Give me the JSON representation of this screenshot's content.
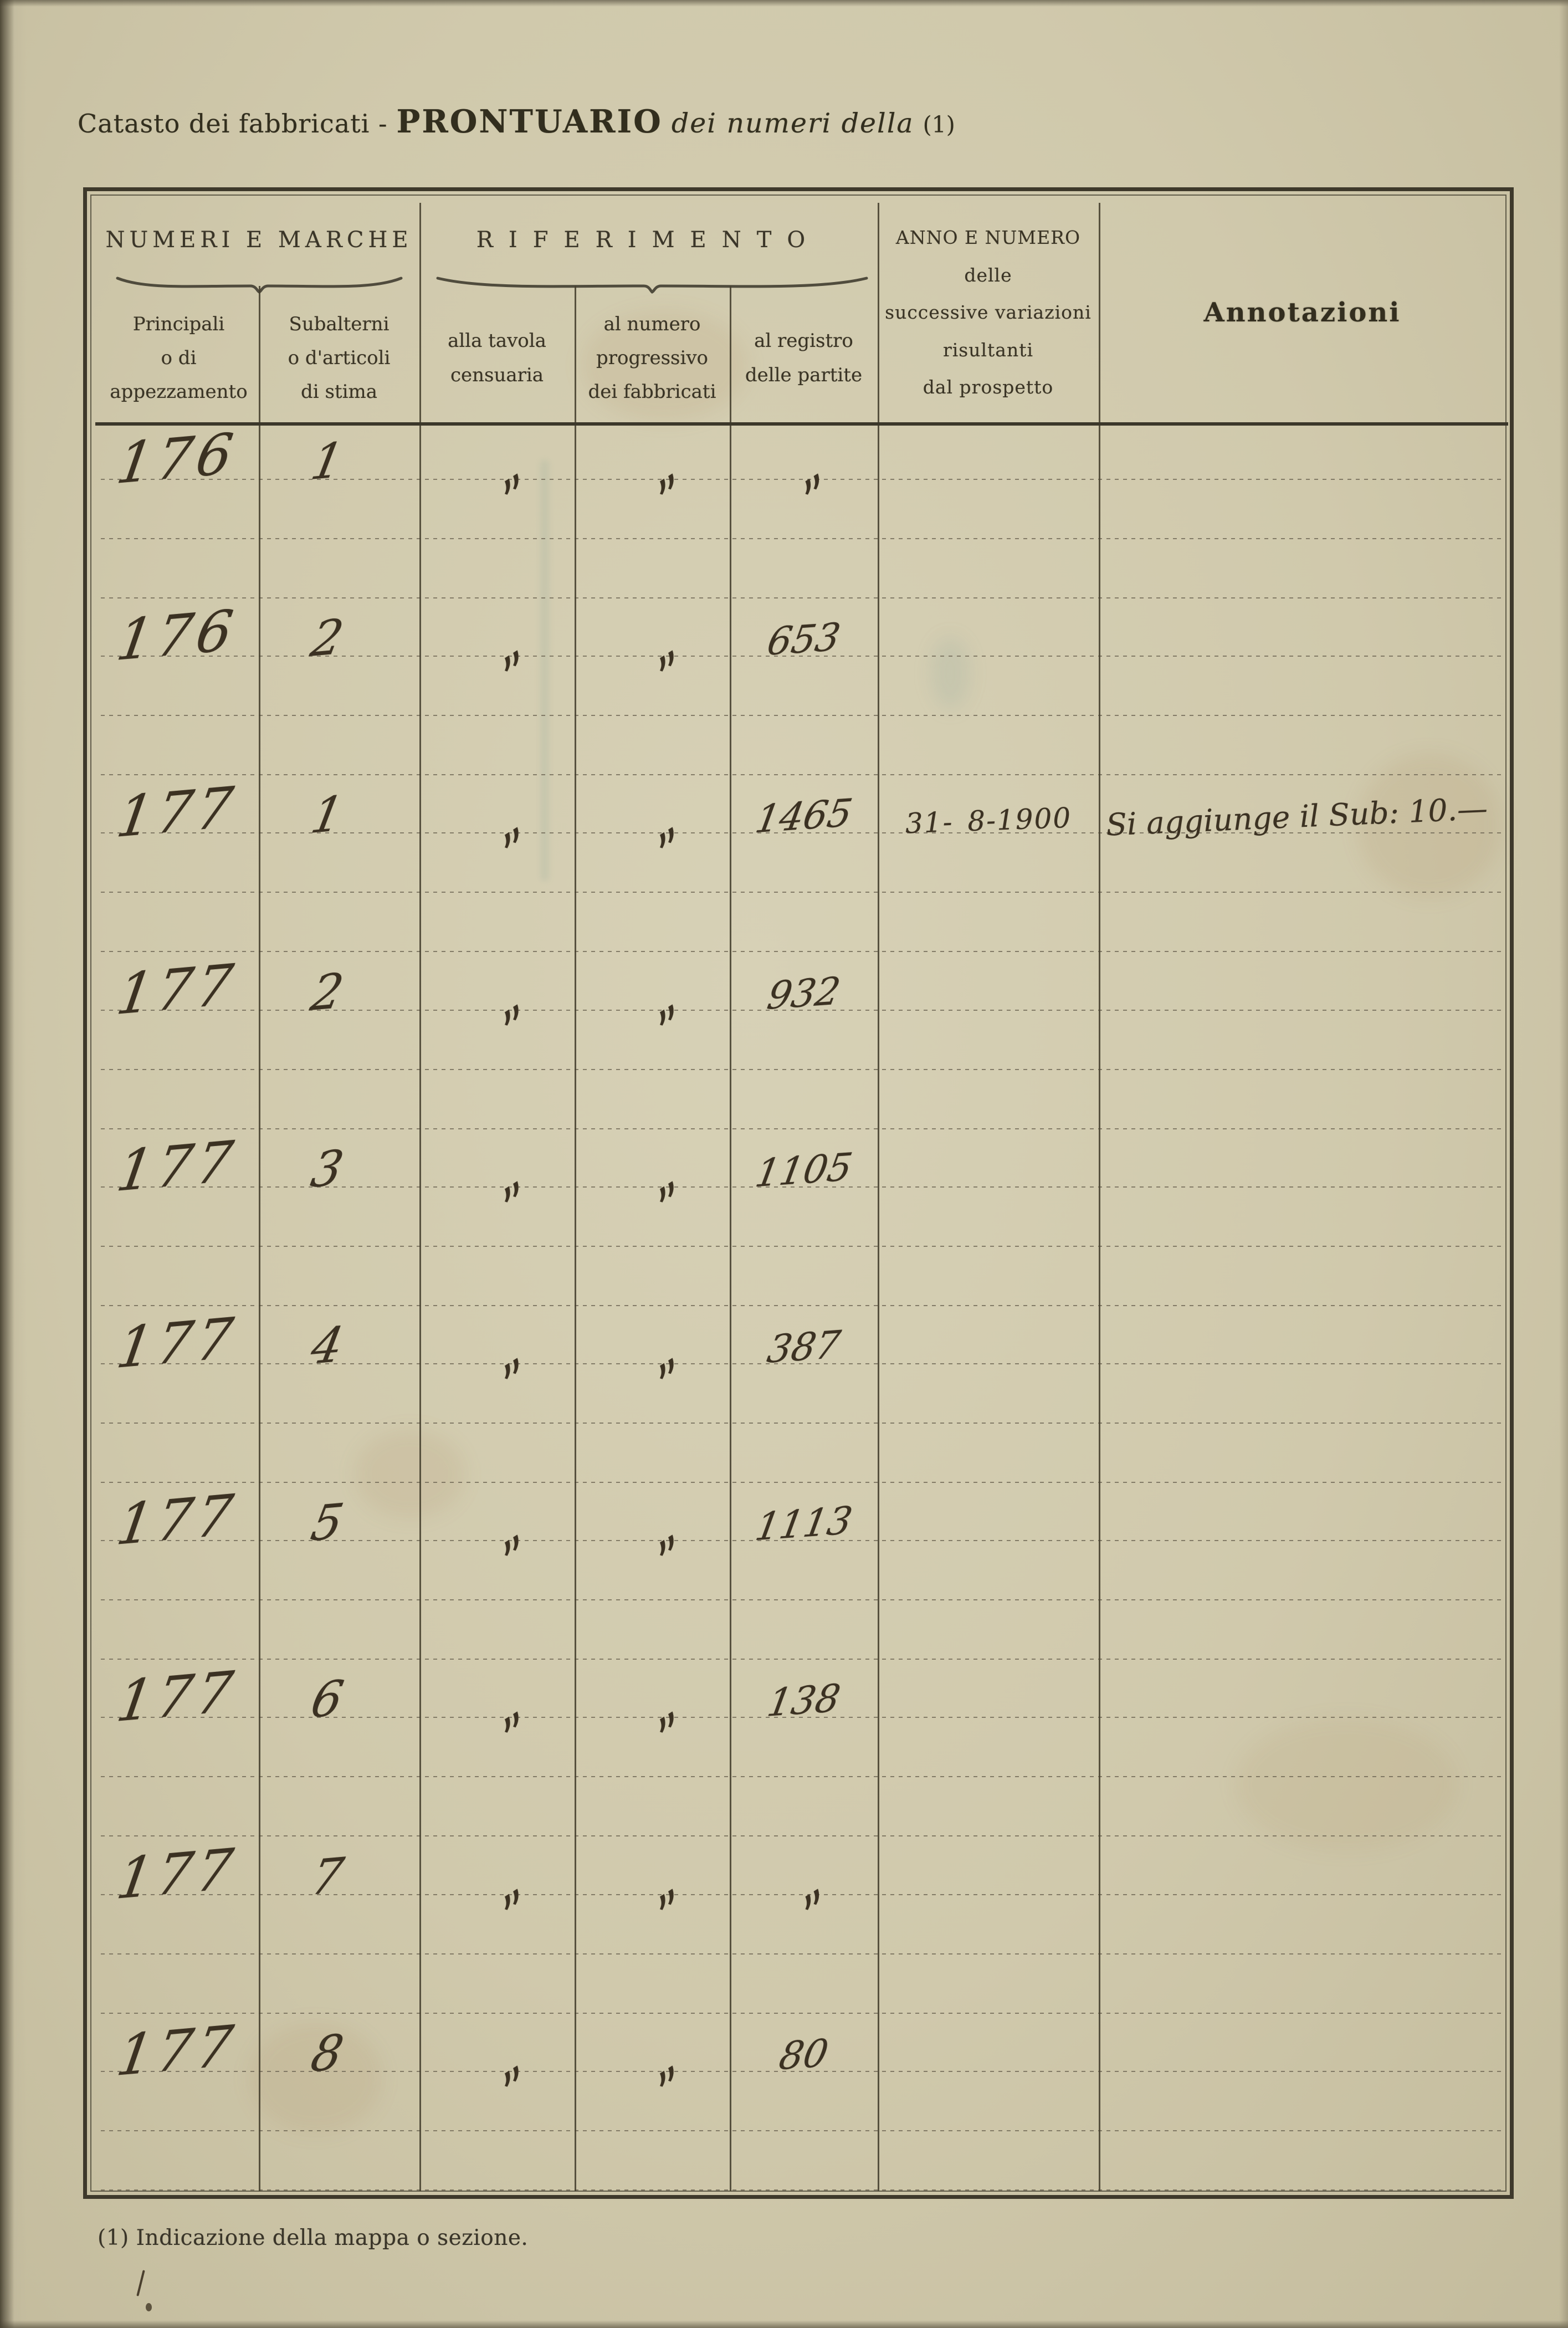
{
  "page": {
    "title": {
      "prefix": "Catasto dei fabbricati -",
      "main": "PRONTUARIO",
      "qualifier": "dei numeri della",
      "footnote_ref": "(1)"
    },
    "footnote": "(1) Indicazione della mappa o sezione."
  },
  "table": {
    "group_headers": [
      {
        "label": "NUMERI E MARCHE"
      },
      {
        "label": "RIFERIMENTO"
      }
    ],
    "column_headers": [
      {
        "label": "Principali\no di\nappezzamento"
      },
      {
        "label": "Subalterni\no d'articoli\ndi stima"
      },
      {
        "label": "alla tavola\ncensuaria"
      },
      {
        "label": "al numero\nprogressivo\ndei fabbricati"
      },
      {
        "label": "al registro\ndelle partite"
      },
      {
        "label": "ANNO E NUMERO\ndelle\nsuccessive variazioni\nrisultanti\ndal prospetto"
      },
      {
        "label": "Annotazioni"
      }
    ],
    "rows": [
      {
        "principale": "176",
        "subalterno": "1",
        "tavola": "„",
        "progressivo": "„",
        "registro": "„",
        "anno": "",
        "annotazione": ""
      },
      {
        "principale": "176",
        "subalterno": "2",
        "tavola": "„",
        "progressivo": "„",
        "registro": "653",
        "anno": "",
        "annotazione": ""
      },
      {
        "principale": "177",
        "subalterno": "1",
        "tavola": "„",
        "progressivo": "„",
        "registro": "1465",
        "anno": "31- 8-1900",
        "annotazione": "Si aggiunge il Sub: 10.—"
      },
      {
        "principale": "177",
        "subalterno": "2",
        "tavola": "„",
        "progressivo": "„",
        "registro": "932",
        "anno": "",
        "annotazione": ""
      },
      {
        "principale": "177",
        "subalterno": "3",
        "tavola": "„",
        "progressivo": "„",
        "registro": "1105",
        "anno": "",
        "annotazione": ""
      },
      {
        "principale": "177",
        "subalterno": "4",
        "tavola": "„",
        "progressivo": "„",
        "registro": "387",
        "anno": "",
        "annotazione": ""
      },
      {
        "principale": "177",
        "subalterno": "5",
        "tavola": "„",
        "progressivo": "„",
        "registro": "1113",
        "anno": "",
        "annotazione": ""
      },
      {
        "principale": "177",
        "subalterno": "6",
        "tavola": "„",
        "progressivo": "„",
        "registro": "138",
        "anno": "",
        "annotazione": ""
      },
      {
        "principale": "177",
        "subalterno": "7",
        "tavola": "„",
        "progressivo": "„",
        "registro": "„",
        "anno": "",
        "annotazione": ""
      },
      {
        "principale": "177",
        "subalterno": "8",
        "tavola": "„",
        "progressivo": "„",
        "registro": "80",
        "anno": "",
        "annotazione": ""
      }
    ]
  }
}
